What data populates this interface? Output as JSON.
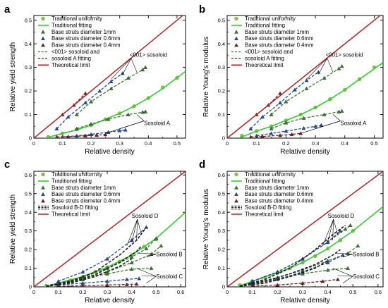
{
  "colors": {
    "traditional": "#8dc63f",
    "traditional_fit": "#33cc33",
    "d1": "#3a7d2c",
    "d06": "#1f4fa8",
    "d04": "#7a1f1f",
    "theory": "#b22222"
  },
  "chart_data": [
    {
      "type": "scatter",
      "panel": "a",
      "xlabel": "Relative density",
      "ylabel": "Relative yield strength",
      "xlim": [
        0,
        0.53
      ],
      "ylim": [
        0,
        0.52
      ],
      "xticks": [
        "0",
        "0.1",
        "0.2",
        "0.3",
        "0.4",
        "0.5"
      ],
      "yticks": [
        "0",
        "0.1",
        "0.2",
        "0.3",
        "0.4",
        "0.5"
      ],
      "legend": [
        "Traditional uniformity",
        "Traditional fitting",
        "Base struts diameter 1mm",
        "Base struts diameter 0.6mm",
        "Base struts diameter 0.4mm",
        "<001> sosoloid and",
        "sosoloid A fitting",
        "Theoretical limit"
      ],
      "annotations": [
        "<001> sosoloid",
        "Sosoloid A"
      ],
      "series": [
        {
          "name": "Traditional uniformity",
          "x": [
            0.05,
            0.1,
            0.15,
            0.2,
            0.25,
            0.3,
            0.35,
            0.4,
            0.45,
            0.5
          ],
          "y": [
            0.005,
            0.02,
            0.037,
            0.055,
            0.08,
            0.105,
            0.135,
            0.17,
            0.215,
            0.255
          ]
        },
        {
          "name": "Traditional fitting",
          "x": [
            0.04,
            0.1,
            0.15,
            0.2,
            0.25,
            0.3,
            0.35,
            0.4,
            0.45,
            0.53
          ],
          "y": [
            0.0,
            0.02,
            0.035,
            0.055,
            0.08,
            0.105,
            0.135,
            0.17,
            0.21,
            0.283
          ]
        },
        {
          "name": "Base struts diameter 1mm",
          "x": [
            0.15,
            0.2,
            0.26,
            0.33,
            0.38,
            0.39
          ],
          "y": [
            0.04,
            0.06,
            0.08,
            0.1,
            0.11,
            0.112
          ]
        },
        {
          "name": "Base struts diameter 1mm",
          "x": [
            0.15,
            0.2,
            0.27,
            0.33,
            0.38,
            0.39
          ],
          "y": [
            0.1,
            0.155,
            0.21,
            0.255,
            0.29,
            0.3
          ]
        },
        {
          "name": "Base struts diameter 0.6mm",
          "x": [
            0.1,
            0.15,
            0.2,
            0.26,
            0.3,
            0.32
          ],
          "y": [
            0.005,
            0.01,
            0.016,
            0.025,
            0.032,
            0.035
          ]
        },
        {
          "name": "Base struts diameter 0.6mm",
          "x": [
            0.08,
            0.12,
            0.18,
            0.23,
            0.27,
            0.31
          ],
          "y": [
            0.04,
            0.09,
            0.15,
            0.2,
            0.24,
            0.275
          ]
        },
        {
          "name": "Base struts diameter 0.4mm",
          "x": [
            0.08,
            0.12,
            0.18,
            0.22,
            0.25
          ],
          "y": [
            0.005,
            0.006,
            0.01,
            0.013,
            0.015
          ]
        },
        {
          "name": "Base struts diameter 0.4mm",
          "x": [
            0.1,
            0.14,
            0.18
          ],
          "y": [
            0.1,
            0.14,
            0.19
          ]
        },
        {
          "name": "Theoretical limit",
          "x": [
            0,
            0.53
          ],
          "y": [
            0,
            0.53
          ]
        }
      ]
    },
    {
      "type": "scatter",
      "panel": "b",
      "xlabel": "Relative density",
      "ylabel": "Relative Young's modulus",
      "xlim": [
        0,
        0.53
      ],
      "ylim": [
        0,
        0.52
      ],
      "xticks": [
        "0",
        "0.1",
        "0.2",
        "0.3",
        "0.4",
        "0.5"
      ],
      "yticks": [
        "0",
        "0.1",
        "0.2",
        "0.3",
        "0.4",
        "0.5"
      ],
      "legend": [
        "Traditional uniformity",
        "Traditional  fitting",
        "Base struts diameter 1mm",
        "Base struts diameter 0.6mm",
        "Base struts diameter 0.4mm",
        "<001> sosoloid and",
        "sosoloid A fitting",
        "Theoretical limit"
      ],
      "annotations": [
        "<001> sosoloid",
        "Sosoloid A"
      ],
      "series": [
        {
          "name": "Traditional uniformity",
          "x": [
            0.05,
            0.1,
            0.15,
            0.2,
            0.25,
            0.3,
            0.35,
            0.4,
            0.45,
            0.5
          ],
          "y": [
            0.01,
            0.03,
            0.05,
            0.075,
            0.1,
            0.13,
            0.165,
            0.205,
            0.25,
            0.3
          ]
        },
        {
          "name": "Traditional fitting",
          "x": [
            0.04,
            0.1,
            0.15,
            0.2,
            0.25,
            0.3,
            0.35,
            0.4,
            0.45,
            0.53
          ],
          "y": [
            0.0,
            0.03,
            0.05,
            0.075,
            0.1,
            0.13,
            0.165,
            0.205,
            0.25,
            0.32
          ]
        },
        {
          "name": "Base struts diameter 1mm",
          "x": [
            0.15,
            0.2,
            0.26,
            0.33,
            0.38,
            0.39
          ],
          "y": [
            0.04,
            0.065,
            0.085,
            0.1,
            0.112,
            0.115
          ]
        },
        {
          "name": "Base struts diameter 1mm",
          "x": [
            0.15,
            0.2,
            0.27,
            0.33,
            0.38,
            0.39
          ],
          "y": [
            0.1,
            0.155,
            0.21,
            0.255,
            0.295,
            0.305
          ]
        },
        {
          "name": "Base struts diameter 0.6mm",
          "x": [
            0.1,
            0.15,
            0.2,
            0.26,
            0.3,
            0.32
          ],
          "y": [
            0.01,
            0.02,
            0.03,
            0.042,
            0.05,
            0.055
          ]
        },
        {
          "name": "Base struts diameter 0.6mm",
          "x": [
            0.08,
            0.12,
            0.18,
            0.23,
            0.27,
            0.31
          ],
          "y": [
            0.04,
            0.09,
            0.15,
            0.205,
            0.245,
            0.28
          ]
        },
        {
          "name": "Base struts diameter 0.4mm",
          "x": [
            0.08,
            0.12,
            0.18,
            0.22,
            0.25
          ],
          "y": [
            0.005,
            0.007,
            0.012,
            0.016,
            0.02
          ]
        },
        {
          "name": "Base struts diameter 0.4mm",
          "x": [
            0.1,
            0.14,
            0.18
          ],
          "y": [
            0.1,
            0.14,
            0.19
          ]
        },
        {
          "name": "Theoretical limit",
          "x": [
            0,
            0.53
          ],
          "y": [
            0,
            0.53
          ]
        }
      ]
    },
    {
      "type": "scatter",
      "panel": "c",
      "xlabel": "Relative density",
      "ylabel": "Relative yield strength",
      "xlim": [
        0,
        0.62
      ],
      "ylim": [
        0,
        0.62
      ],
      "xticks": [
        "0",
        "0.1",
        "0.2",
        "0.3",
        "0.4",
        "0.5",
        "0.6"
      ],
      "yticks": [
        "0",
        "0.1",
        "0.2",
        "0.3",
        "0.4",
        "0.5",
        "0.6"
      ],
      "legend": [
        "Traditional uniformity",
        "Traditional fitting",
        "Base struts diameter 1mm",
        "Base struts diameter 0.6mm",
        "Base struts diameter 0.4mm",
        "Sosoloid B-D fitting",
        "Theoretical limit"
      ],
      "annotations": [
        "Sosoloid  D",
        "Sosoloid  B",
        "Sosoloid  C"
      ],
      "series": [
        {
          "name": "Traditional uniformity",
          "x": [
            0.05,
            0.1,
            0.15,
            0.2,
            0.25,
            0.3,
            0.35,
            0.4,
            0.45,
            0.5
          ],
          "y": [
            0.005,
            0.02,
            0.035,
            0.055,
            0.08,
            0.105,
            0.135,
            0.17,
            0.215,
            0.255
          ]
        },
        {
          "name": "Traditional fitting",
          "x": [
            0.04,
            0.1,
            0.2,
            0.3,
            0.4,
            0.5,
            0.62
          ],
          "y": [
            0.0,
            0.02,
            0.055,
            0.105,
            0.17,
            0.26,
            0.4
          ]
        },
        {
          "name": "Base struts diameter 1mm",
          "x": [
            0.1,
            0.2,
            0.3,
            0.4,
            0.46,
            0.5
          ],
          "y": [
            0.02,
            0.05,
            0.1,
            0.16,
            0.205,
            0.26
          ]
        },
        {
          "name": "Base struts diameter 1mm",
          "x": [
            0.1,
            0.2,
            0.3,
            0.4,
            0.48,
            0.52
          ],
          "y": [
            0.015,
            0.04,
            0.08,
            0.13,
            0.175,
            0.22
          ]
        },
        {
          "name": "Base struts diameter 1mm",
          "x": [
            0.1,
            0.2,
            0.3,
            0.4,
            0.48
          ],
          "y": [
            0.02,
            0.045,
            0.07,
            0.095,
            0.1
          ]
        },
        {
          "name": "Base struts diameter 0.6mm",
          "x": [
            0.1,
            0.2,
            0.3,
            0.4,
            0.46
          ],
          "y": [
            0.03,
            0.08,
            0.15,
            0.25,
            0.32
          ]
        },
        {
          "name": "Base struts diameter 0.6mm",
          "x": [
            0.1,
            0.2,
            0.3,
            0.38,
            0.43
          ],
          "y": [
            0.01,
            0.02,
            0.03,
            0.04,
            0.045
          ]
        },
        {
          "name": "Base struts diameter 0.4mm",
          "x": [
            0.1,
            0.2,
            0.3,
            0.38,
            0.42
          ],
          "y": [
            0.003,
            0.006,
            0.01,
            0.013,
            0.015
          ]
        },
        {
          "name": "Sosoloid B-D fitting",
          "x": [
            0.05,
            0.15,
            0.25,
            0.35,
            0.42,
            0.46
          ],
          "y": [
            0.005,
            0.03,
            0.08,
            0.17,
            0.25,
            0.32
          ]
        },
        {
          "name": "Sosoloid B-D fitting",
          "x": [
            0.05,
            0.15,
            0.25,
            0.35,
            0.42,
            0.44
          ],
          "y": [
            0.004,
            0.025,
            0.065,
            0.13,
            0.19,
            0.22
          ]
        },
        {
          "name": "Sosoloid B-D fitting",
          "x": [
            0.05,
            0.15,
            0.25,
            0.35,
            0.4
          ],
          "y": [
            0.003,
            0.02,
            0.055,
            0.11,
            0.15
          ]
        },
        {
          "name": "Theoretical limit",
          "x": [
            0,
            0.62
          ],
          "y": [
            0,
            0.62
          ]
        }
      ]
    },
    {
      "type": "scatter",
      "panel": "d",
      "xlabel": "Relative density",
      "ylabel": "Relative Young's modulus",
      "xlim": [
        0,
        0.62
      ],
      "ylim": [
        0,
        0.62
      ],
      "xticks": [
        "0",
        "0.1",
        "0.2",
        "0.3",
        "0.4",
        "0.5",
        "0.6"
      ],
      "yticks": [
        "0",
        "0.1",
        "0.2",
        "0.3",
        "0.4",
        "0.5",
        "0.6"
      ],
      "legend": [
        "Traditional uniformity",
        "Traditional fitting",
        "Base struts diameter 1mm",
        "Base struts diameter 0.6mm",
        "Base struts diameter 0.4mm",
        "Sosoloid B-D fitting",
        "Theoretical limit"
      ],
      "annotations": [
        "Sosoloid  D",
        "Sosoloid  B",
        "Sosoloid  C"
      ],
      "series": [
        {
          "name": "Traditional uniformity",
          "x": [
            0.05,
            0.1,
            0.15,
            0.2,
            0.25,
            0.3,
            0.35,
            0.4,
            0.45,
            0.5
          ],
          "y": [
            0.01,
            0.03,
            0.05,
            0.075,
            0.1,
            0.13,
            0.165,
            0.205,
            0.25,
            0.3
          ]
        },
        {
          "name": "Traditional fitting",
          "x": [
            0.04,
            0.1,
            0.2,
            0.3,
            0.4,
            0.5,
            0.62
          ],
          "y": [
            0.0,
            0.03,
            0.075,
            0.13,
            0.205,
            0.3,
            0.43
          ]
        },
        {
          "name": "Base struts diameter 1mm",
          "x": [
            0.1,
            0.2,
            0.3,
            0.4,
            0.47,
            0.49
          ],
          "y": [
            0.03,
            0.08,
            0.15,
            0.24,
            0.31,
            0.33
          ]
        },
        {
          "name": "Base struts diameter 1mm",
          "x": [
            0.1,
            0.2,
            0.3,
            0.4,
            0.48,
            0.52
          ],
          "y": [
            0.02,
            0.05,
            0.09,
            0.14,
            0.18,
            0.22
          ]
        },
        {
          "name": "Base struts diameter 1mm",
          "x": [
            0.1,
            0.2,
            0.3,
            0.4,
            0.48
          ],
          "y": [
            0.02,
            0.045,
            0.07,
            0.09,
            0.1
          ]
        },
        {
          "name": "Base struts diameter 0.6mm",
          "x": [
            0.1,
            0.2,
            0.3,
            0.4,
            0.45
          ],
          "y": [
            0.03,
            0.08,
            0.15,
            0.24,
            0.3
          ]
        },
        {
          "name": "Base struts diameter 0.6mm",
          "x": [
            0.1,
            0.2,
            0.3,
            0.4,
            0.46
          ],
          "y": [
            0.015,
            0.04,
            0.08,
            0.13,
            0.17
          ]
        },
        {
          "name": "Base struts diameter 0.4mm",
          "x": [
            0.1,
            0.2,
            0.3,
            0.38,
            0.44
          ],
          "y": [
            0.004,
            0.01,
            0.02,
            0.03,
            0.04
          ]
        },
        {
          "name": "Sosoloid B-D fitting",
          "x": [
            0.05,
            0.15,
            0.25,
            0.35,
            0.42,
            0.47
          ],
          "y": [
            0.005,
            0.04,
            0.1,
            0.2,
            0.28,
            0.33
          ]
        },
        {
          "name": "Sosoloid B-D fitting",
          "x": [
            0.05,
            0.15,
            0.25,
            0.35,
            0.42,
            0.45
          ],
          "y": [
            0.004,
            0.03,
            0.07,
            0.12,
            0.17,
            0.2
          ]
        },
        {
          "name": "Sosoloid B-D fitting",
          "x": [
            0.05,
            0.15,
            0.25,
            0.35,
            0.4
          ],
          "y": [
            0.003,
            0.02,
            0.055,
            0.1,
            0.14
          ]
        },
        {
          "name": "Theoretical limit",
          "x": [
            0,
            0.62
          ],
          "y": [
            0,
            0.62
          ]
        }
      ]
    }
  ]
}
